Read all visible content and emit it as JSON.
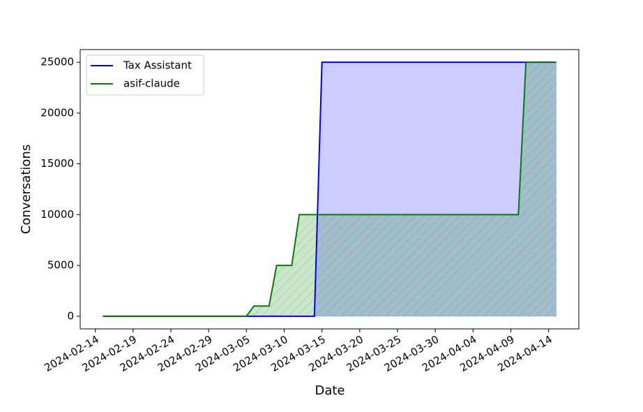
{
  "chart_data": {
    "type": "area",
    "x_label": "Date",
    "y_label": "Conversations",
    "series": [
      {
        "name": "Tax Assistant",
        "color": "#0000ff",
        "x": [
          "2024-02-15",
          "2024-03-14",
          "2024-03-15",
          "2024-04-15"
        ],
        "values": [
          0,
          0,
          25000,
          25000
        ]
      },
      {
        "name": "asif-claude",
        "color": "#008000",
        "hatch": "//",
        "x": [
          "2024-02-15",
          "2024-03-05",
          "2024-03-06",
          "2024-03-08",
          "2024-03-09",
          "2024-03-11",
          "2024-03-12",
          "2024-04-10",
          "2024-04-11",
          "2024-04-15"
        ],
        "values": [
          0,
          0,
          1000,
          1000,
          5000,
          5000,
          10000,
          10000,
          25000,
          25000
        ]
      }
    ],
    "xlim": [
      "2024-02-12",
      "2024-04-18"
    ],
    "xticks": [
      "2024-02-14",
      "2024-02-19",
      "2024-02-24",
      "2024-02-29",
      "2024-03-05",
      "2024-03-10",
      "2024-03-15",
      "2024-03-20",
      "2024-03-25",
      "2024-03-30",
      "2024-04-04",
      "2024-04-09",
      "2024-04-14"
    ],
    "ylim": [
      -1250,
      26250
    ],
    "yticks": [
      0,
      5000,
      10000,
      15000,
      20000,
      25000
    ],
    "legend": "upper left"
  }
}
